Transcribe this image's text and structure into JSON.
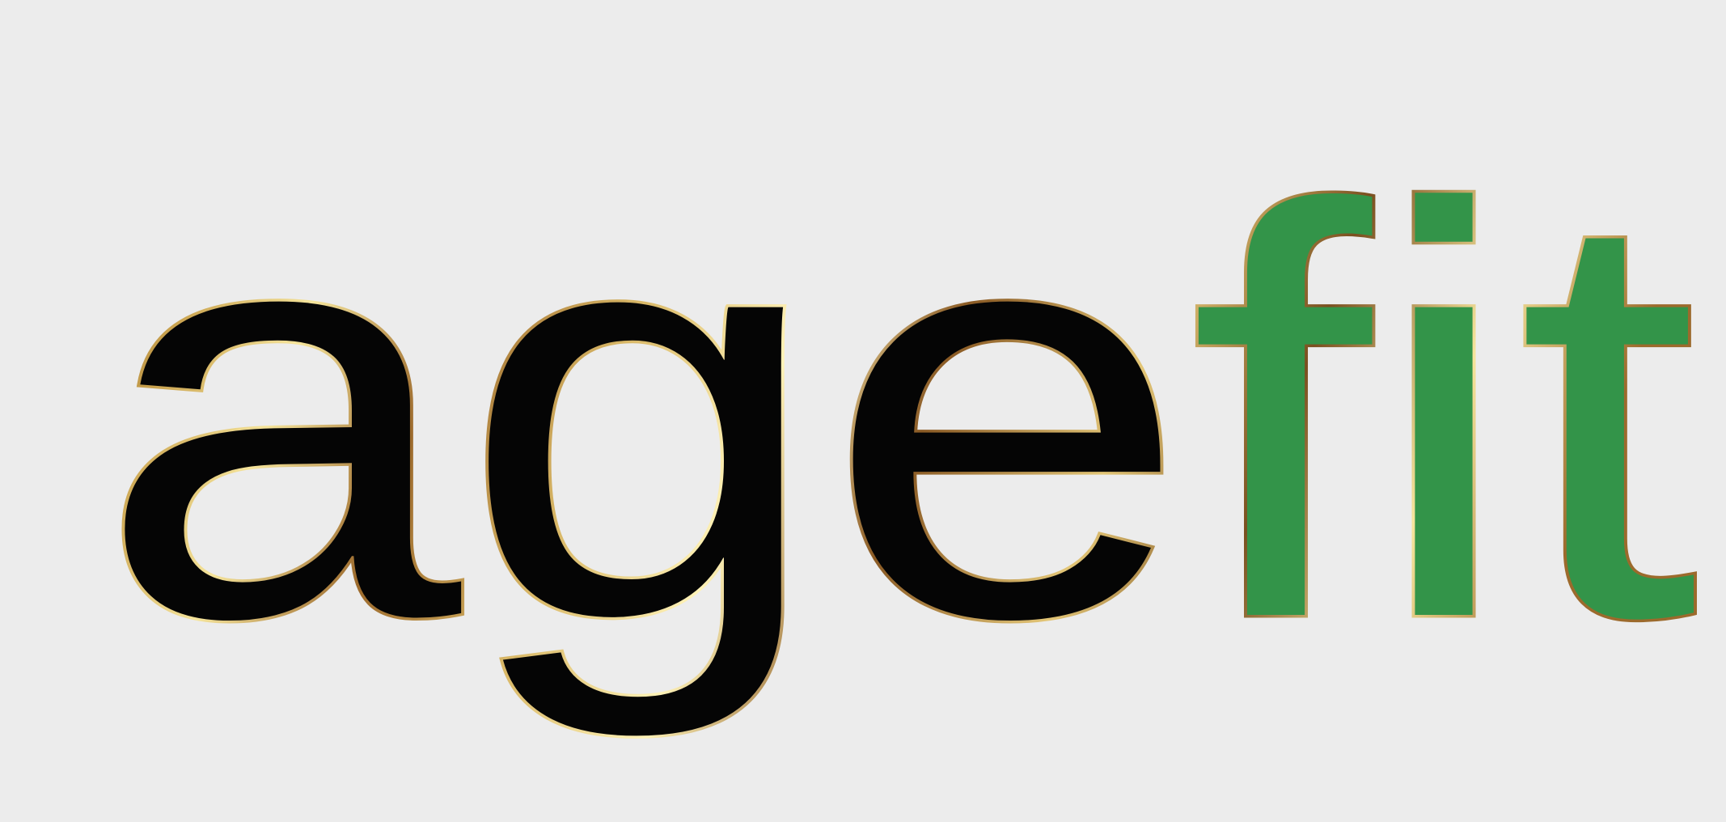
{
  "logo": {
    "text_dark": "age",
    "text_accent": "fit"
  },
  "colors": {
    "background": "#ececec",
    "text_dark": "#050505",
    "text_accent": "#339449",
    "outline_gold_light": "#f6e59c",
    "outline_gold_mid": "#c9a24e",
    "outline_gold_dark": "#7a4f1f"
  }
}
